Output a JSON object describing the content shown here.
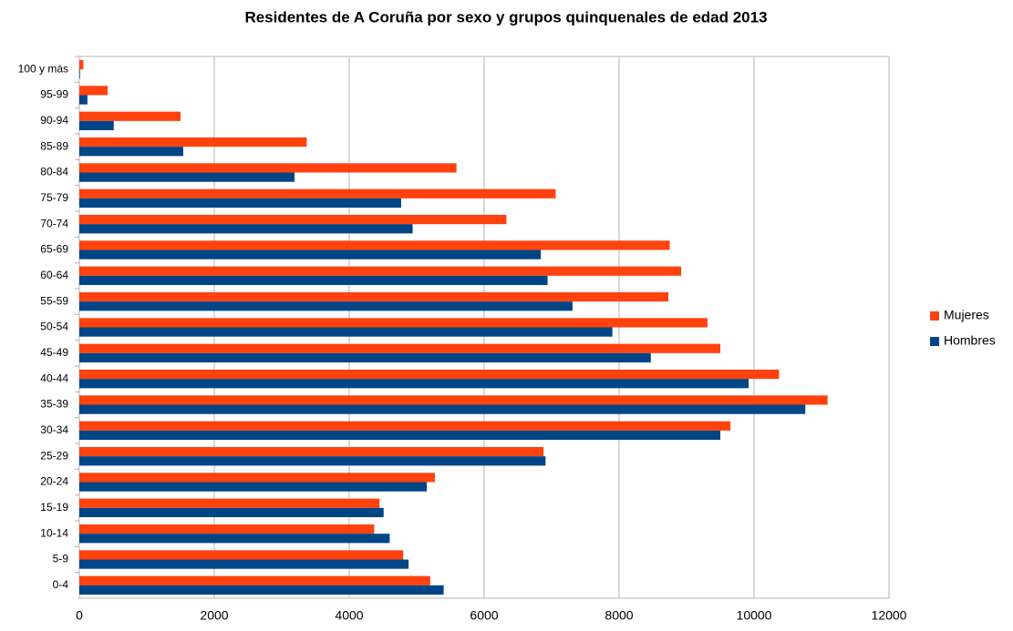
{
  "chart_data": {
    "type": "hbar",
    "title": "Residentes de A Coruña por sexo y grupos quinquenales de edad 2013",
    "categories": [
      "0-4",
      "5-9",
      "10-14",
      "15-19",
      "20-24",
      "25-29",
      "30-34",
      "35-39",
      "40-44",
      "45-49",
      "50-54",
      "55-59",
      "60-64",
      "65-69",
      "70-74",
      "75-79",
      "80-84",
      "85-89",
      "90-94",
      "95-99",
      "100 y más"
    ],
    "series": [
      {
        "name": "Mujeres",
        "color": "#ff420e",
        "values": [
          5200,
          4800,
          4370,
          4450,
          5270,
          6880,
          9650,
          11090,
          10370,
          9500,
          9310,
          8730,
          8920,
          8750,
          6330,
          7060,
          5590,
          3370,
          1500,
          420,
          60
        ]
      },
      {
        "name": "Hombres",
        "color": "#004586",
        "values": [
          5400,
          4880,
          4600,
          4510,
          5150,
          6910,
          9500,
          10760,
          9920,
          8470,
          7900,
          7310,
          6940,
          6840,
          4940,
          4770,
          3190,
          1540,
          510,
          120,
          10
        ]
      }
    ],
    "xlim": [
      0,
      12000
    ],
    "xticks": [
      0,
      2000,
      4000,
      6000,
      8000,
      10000,
      12000
    ],
    "grid": true,
    "legend": "right"
  }
}
